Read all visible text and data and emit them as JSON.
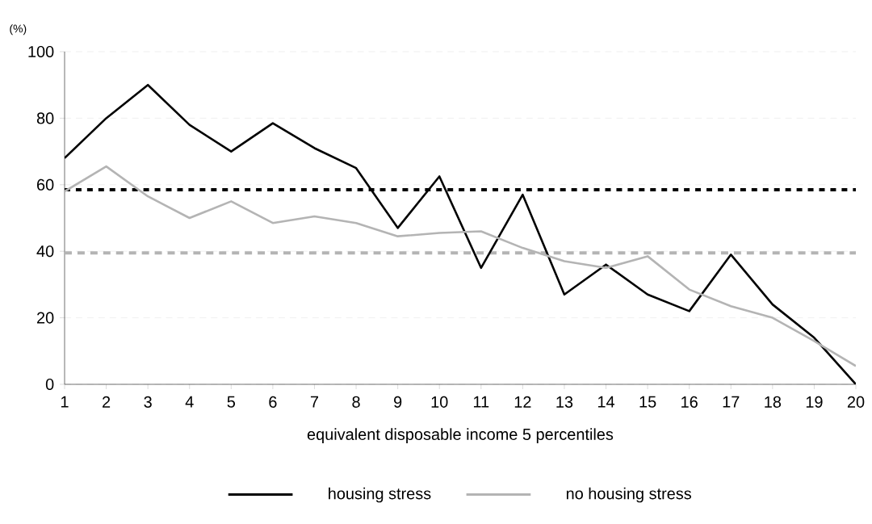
{
  "chart_data": {
    "type": "line",
    "ylabel": "(%)",
    "xlabel": "equivalent disposable income 5 percentiles",
    "categories": [
      "1",
      "2",
      "3",
      "4",
      "5",
      "6",
      "7",
      "8",
      "9",
      "10",
      "11",
      "12",
      "13",
      "14",
      "15",
      "16",
      "17",
      "18",
      "19",
      "20"
    ],
    "series": [
      {
        "name": "housing stress",
        "color": "#000000",
        "values": [
          68,
          80,
          90,
          78,
          70,
          78.5,
          71,
          65,
          47,
          62.5,
          35,
          57,
          27,
          36,
          27,
          22,
          39,
          24,
          14,
          0
        ]
      },
      {
        "name": "no housing stress",
        "color": "#b4b4b4",
        "values": [
          58,
          65.5,
          56.5,
          50,
          55,
          48.5,
          50.5,
          48.5,
          44.5,
          45.5,
          46,
          41,
          37,
          35,
          38.5,
          28.5,
          23.5,
          20,
          13,
          5.5
        ]
      }
    ],
    "ref_lines": [
      {
        "axis": "y",
        "value": 58.5,
        "color": "#000000",
        "line_style": "dotted"
      },
      {
        "axis": "y",
        "value": 39.5,
        "color": "#b4b4b4",
        "line_style": "dashed"
      }
    ],
    "ylim": [
      0,
      100
    ],
    "yticks": [
      0,
      20,
      40,
      60,
      80,
      100
    ],
    "grid": "y",
    "legend": "bottom",
    "marker": "none",
    "line_style": "solid"
  }
}
